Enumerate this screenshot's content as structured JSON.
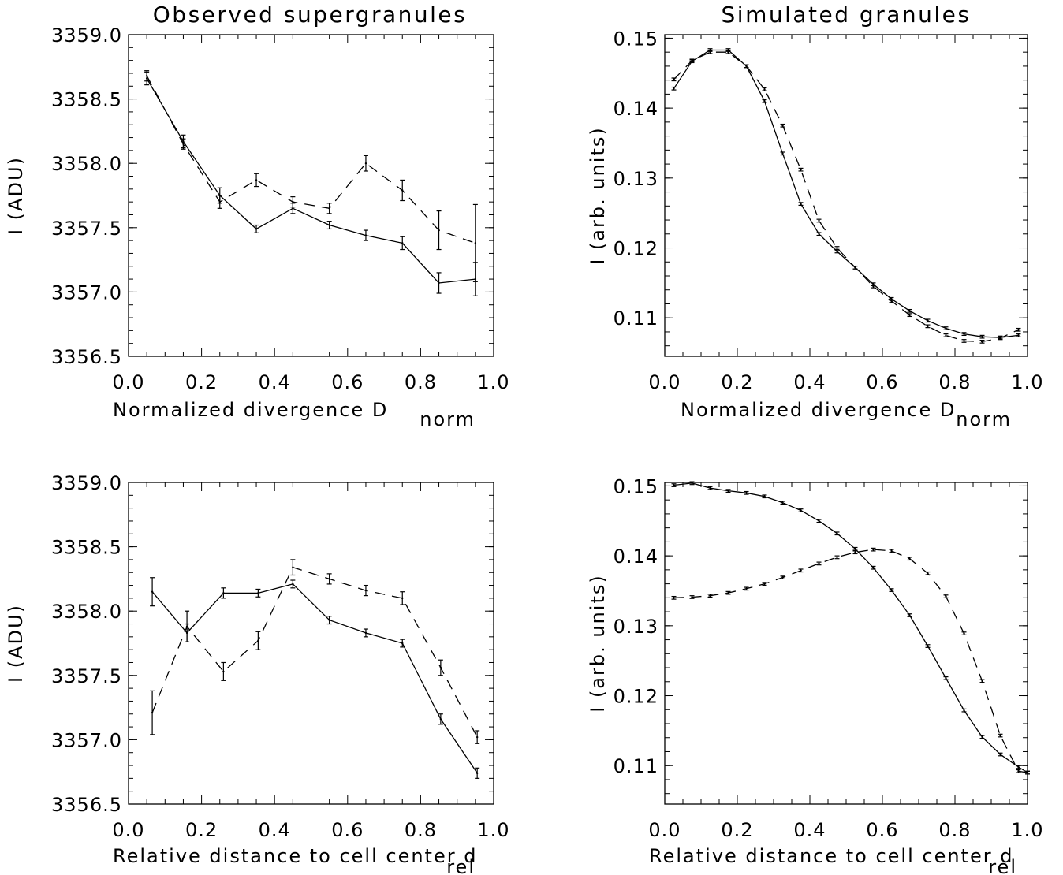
{
  "chart_data": [
    {
      "type": "line",
      "title": "Observed supergranules",
      "xlabel": "Normalized divergence D",
      "xlabel_sub": "norm",
      "ylabel": "I (ADU)",
      "xlim": [
        0.0,
        1.0
      ],
      "ylim": [
        3356.5,
        3359.0
      ],
      "xticks": [
        "0.0",
        "0.2",
        "0.4",
        "0.6",
        "0.8",
        "1.0"
      ],
      "yticks": [
        "3356.5",
        "3357.0",
        "3357.5",
        "3358.0",
        "3358.5",
        "3359.0"
      ],
      "series": [
        {
          "style": "solid",
          "x": [
            0.05,
            0.15,
            0.25,
            0.35,
            0.45,
            0.55,
            0.65,
            0.75,
            0.85,
            0.95
          ],
          "y": [
            3358.66,
            3358.17,
            3357.75,
            3357.49,
            3357.65,
            3357.52,
            3357.44,
            3357.38,
            3357.07,
            3357.1
          ],
          "err": [
            0.05,
            0.05,
            0.06,
            0.03,
            0.04,
            0.03,
            0.04,
            0.05,
            0.08,
            0.13
          ]
        },
        {
          "style": "dashed",
          "x": [
            0.05,
            0.15,
            0.25,
            0.35,
            0.45,
            0.55,
            0.65,
            0.75,
            0.85,
            0.95
          ],
          "y": [
            3358.68,
            3358.15,
            3357.7,
            3357.87,
            3357.7,
            3357.65,
            3358.0,
            3357.79,
            3357.48,
            3357.38
          ],
          "err": [
            0.04,
            0.04,
            0.05,
            0.05,
            0.04,
            0.04,
            0.06,
            0.08,
            0.15,
            0.3
          ]
        }
      ]
    },
    {
      "type": "line",
      "title": "Simulated granules",
      "xlabel": "Normalized divergence D",
      "xlabel_sub": "norm",
      "ylabel": "I (arb. units)",
      "xlim": [
        0.0,
        1.0
      ],
      "ylim": [
        0.1045,
        0.1505
      ],
      "xticks": [
        "0.0",
        "0.2",
        "0.4",
        "0.6",
        "0.8",
        "1.0"
      ],
      "yticks": [
        "0.11",
        "0.12",
        "0.13",
        "0.14",
        "0.15"
      ],
      "series": [
        {
          "style": "solid",
          "x": [
            0.025,
            0.075,
            0.125,
            0.175,
            0.225,
            0.275,
            0.325,
            0.375,
            0.425,
            0.475,
            0.525,
            0.575,
            0.625,
            0.675,
            0.725,
            0.775,
            0.825,
            0.875,
            0.925,
            0.975
          ],
          "y": [
            0.1428,
            0.1467,
            0.1483,
            0.1483,
            0.146,
            0.141,
            0.1335,
            0.1263,
            0.122,
            0.1195,
            0.1172,
            0.1148,
            0.1127,
            0.111,
            0.1096,
            0.1085,
            0.1077,
            0.1073,
            0.1072,
            0.1075
          ],
          "err": [
            0.0002,
            0.0002,
            0.0002,
            0.0002,
            0.0002,
            0.0002,
            0.0002,
            0.0002,
            0.0002,
            0.0002,
            0.0002,
            0.0002,
            0.0002,
            0.0002,
            0.0002,
            0.0002,
            0.0002,
            0.0002,
            0.0002,
            0.0002
          ]
        },
        {
          "style": "dashed",
          "x": [
            0.025,
            0.075,
            0.125,
            0.175,
            0.225,
            0.275,
            0.325,
            0.375,
            0.425,
            0.475,
            0.525,
            0.575,
            0.625,
            0.675,
            0.725,
            0.775,
            0.825,
            0.875,
            0.925,
            0.975
          ],
          "y": [
            0.1441,
            0.1468,
            0.148,
            0.148,
            0.146,
            0.1427,
            0.1375,
            0.1312,
            0.1239,
            0.12,
            0.1172,
            0.1145,
            0.1124,
            0.1104,
            0.1088,
            0.1075,
            0.1067,
            0.1066,
            0.1071,
            0.1083
          ],
          "err": [
            0.0002,
            0.0002,
            0.0002,
            0.0002,
            0.0002,
            0.0002,
            0.0002,
            0.0002,
            0.0002,
            0.0002,
            0.0002,
            0.0002,
            0.0002,
            0.0002,
            0.0002,
            0.0002,
            0.0002,
            0.0002,
            0.0002,
            0.0002
          ]
        }
      ]
    },
    {
      "type": "line",
      "title": "",
      "xlabel": "Relative distance to cell center d",
      "xlabel_sub": "rel",
      "ylabel": "I (ADU)",
      "xlim": [
        0.0,
        1.0
      ],
      "ylim": [
        3356.5,
        3359.0
      ],
      "xticks": [
        "0.0",
        "0.2",
        "0.4",
        "0.6",
        "0.8",
        "1.0"
      ],
      "yticks": [
        "3356.5",
        "3357.0",
        "3357.5",
        "3358.0",
        "3358.5",
        "3359.0"
      ],
      "series": [
        {
          "style": "solid",
          "x": [
            0.065,
            0.16,
            0.26,
            0.355,
            0.45,
            0.55,
            0.65,
            0.75,
            0.855,
            0.955
          ],
          "y": [
            3358.15,
            3357.83,
            3358.14,
            3358.14,
            3358.21,
            3357.93,
            3357.83,
            3357.75,
            3357.16,
            3356.74
          ],
          "err": [
            0.11,
            0.07,
            0.04,
            0.03,
            0.03,
            0.03,
            0.03,
            0.03,
            0.04,
            0.04
          ]
        },
        {
          "style": "dashed",
          "x": [
            0.065,
            0.16,
            0.26,
            0.355,
            0.45,
            0.55,
            0.65,
            0.75,
            0.855,
            0.955
          ],
          "y": [
            3357.21,
            3357.88,
            3357.53,
            3357.77,
            3358.34,
            3358.25,
            3358.16,
            3358.1,
            3357.56,
            3357.02
          ],
          "err": [
            0.17,
            0.12,
            0.07,
            0.07,
            0.06,
            0.04,
            0.04,
            0.05,
            0.06,
            0.05
          ]
        }
      ]
    },
    {
      "type": "line",
      "title": "",
      "xlabel": "Relative distance to cell center d",
      "xlabel_sub": "rel",
      "ylabel": "I (arb. units)",
      "xlim": [
        0.0,
        1.0
      ],
      "ylim": [
        0.1045,
        0.1505
      ],
      "xticks": [
        "0.0",
        "0.2",
        "0.4",
        "0.6",
        "0.8",
        "1.0"
      ],
      "yticks": [
        "0.11",
        "0.12",
        "0.13",
        "0.14",
        "0.15"
      ],
      "series": [
        {
          "style": "solid",
          "x": [
            0.025,
            0.075,
            0.125,
            0.175,
            0.225,
            0.275,
            0.325,
            0.375,
            0.425,
            0.475,
            0.525,
            0.575,
            0.625,
            0.675,
            0.725,
            0.775,
            0.825,
            0.875,
            0.925,
            0.975,
            1.0
          ],
          "y": [
            0.1501,
            0.1504,
            0.1497,
            0.1493,
            0.149,
            0.1485,
            0.1476,
            0.1465,
            0.145,
            0.1432,
            0.141,
            0.1383,
            0.1351,
            0.1315,
            0.1271,
            0.1225,
            0.1179,
            0.1141,
            0.1116,
            0.1098,
            0.109
          ],
          "err": [
            0.0002,
            0.0002,
            0.0002,
            0.0002,
            0.0002,
            0.0002,
            0.0002,
            0.0002,
            0.0002,
            0.0002,
            0.0002,
            0.0002,
            0.0002,
            0.0002,
            0.0002,
            0.0002,
            0.0002,
            0.0002,
            0.0002,
            0.0002,
            0.0002
          ]
        },
        {
          "style": "dashed",
          "x": [
            0.025,
            0.075,
            0.125,
            0.175,
            0.225,
            0.275,
            0.325,
            0.375,
            0.425,
            0.475,
            0.525,
            0.575,
            0.625,
            0.675,
            0.725,
            0.775,
            0.825,
            0.875,
            0.925,
            0.975,
            1.0
          ],
          "y": [
            0.134,
            0.1341,
            0.1343,
            0.1347,
            0.1353,
            0.136,
            0.1369,
            0.1379,
            0.1389,
            0.1398,
            0.1405,
            0.1409,
            0.1407,
            0.1396,
            0.1375,
            0.1342,
            0.1289,
            0.1221,
            0.1143,
            0.1092,
            0.109
          ],
          "err": [
            0.0002,
            0.0002,
            0.0002,
            0.0002,
            0.0002,
            0.0002,
            0.0002,
            0.0002,
            0.0002,
            0.0002,
            0.0002,
            0.0002,
            0.0002,
            0.0002,
            0.0002,
            0.0002,
            0.0002,
            0.0002,
            0.0002,
            0.0002,
            0.0002
          ]
        }
      ]
    }
  ]
}
